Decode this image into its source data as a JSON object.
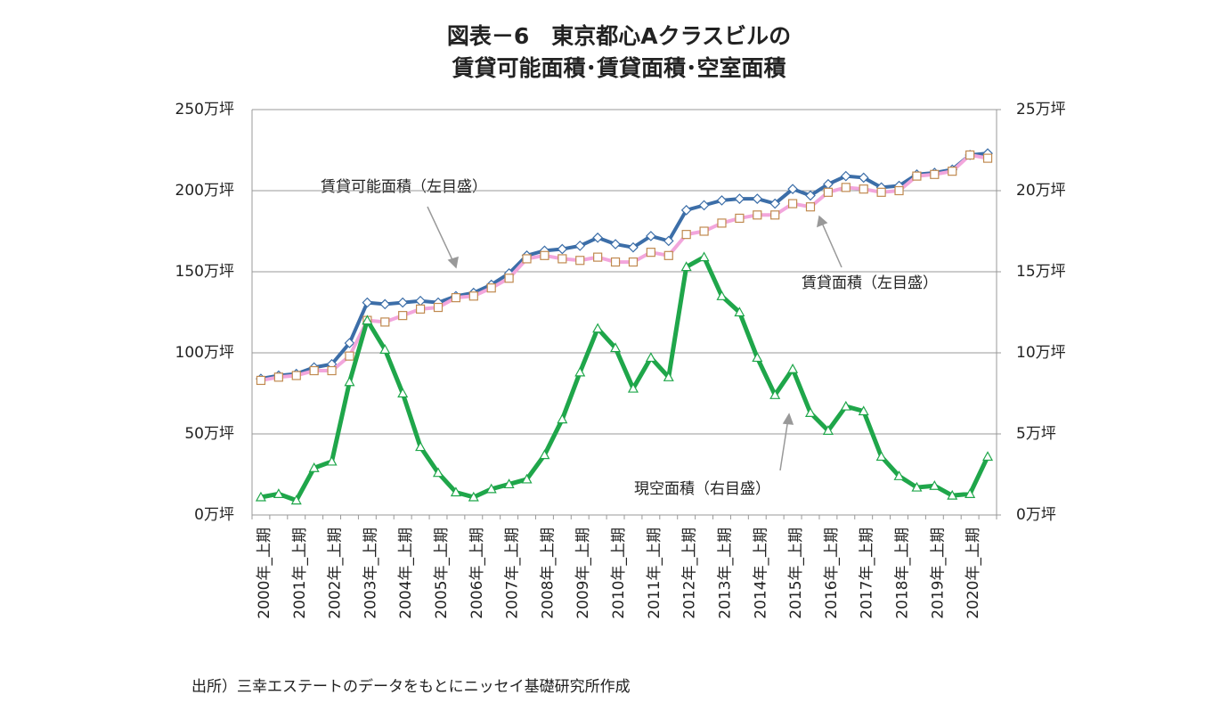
{
  "chart_data": {
    "type": "line",
    "title": [
      "図表－6　東京都心Aクラスビルの",
      "賃貸可能面積･賃貸面積･空室面積"
    ],
    "categories": [
      "2000年_上期",
      null,
      "2001年_上期",
      null,
      "2002年_上期",
      null,
      "2003年_上期",
      null,
      "2004年_上期",
      null,
      "2005年_上期",
      null,
      "2006年_上期",
      null,
      "2007年_上期",
      null,
      "2008年_上期",
      null,
      "2009年_上期",
      null,
      "2010年_上期",
      null,
      "2011年_上期",
      null,
      "2012年_上期",
      null,
      "2013年_上期",
      null,
      "2014年_上期",
      null,
      "2015年_上期",
      null,
      "2016年_上期",
      null,
      "2017年_上期",
      null,
      "2018年_上期",
      null,
      "2019年_上期",
      null,
      "2020年_上期",
      null
    ],
    "series": [
      {
        "name": "賃貸可能面積（左目盛）",
        "color": "#3c6ea8",
        "marker": "diamond",
        "label_color": "#8eaacb",
        "values": [
          84,
          86,
          87,
          91,
          93,
          106,
          131,
          130,
          131,
          132,
          131,
          135,
          137,
          142,
          149,
          160,
          163,
          164,
          166,
          171,
          167,
          165,
          172,
          169,
          188,
          191,
          194,
          195,
          195,
          192,
          201,
          197,
          204,
          209,
          208,
          202,
          203,
          210,
          211,
          213,
          222,
          223
        ]
      },
      {
        "name": "賃貸面積（左目盛）",
        "color": "#f2a6dc",
        "marker": "square",
        "marker_color": "#c08a50",
        "label_color": "#ee8e8e",
        "values": [
          83,
          85,
          86,
          89,
          89,
          98,
          120,
          119,
          123,
          127,
          128,
          134,
          135,
          140,
          146,
          158,
          160,
          158,
          157,
          159,
          156,
          156,
          162,
          160,
          173,
          175,
          180,
          183,
          185,
          185,
          192,
          190,
          199,
          202,
          201,
          199,
          200,
          209,
          210,
          212,
          222,
          220
        ]
      },
      {
        "name": "現空面積（右目盛）",
        "color": "#1fa64a",
        "marker": "triangle",
        "label_color": "#6cc27c",
        "axis": "y2",
        "values": [
          1.1,
          1.3,
          0.9,
          2.9,
          3.3,
          8.2,
          12.0,
          10.2,
          7.5,
          4.2,
          2.6,
          1.4,
          1.1,
          1.6,
          1.9,
          2.2,
          3.7,
          5.9,
          8.8,
          11.5,
          10.3,
          7.8,
          9.7,
          8.5,
          15.3,
          15.9,
          13.5,
          12.5,
          9.7,
          7.4,
          9.0,
          6.3,
          5.2,
          6.7,
          6.4,
          3.6,
          2.4,
          1.7,
          1.8,
          1.2,
          1.3,
          3.6
        ]
      }
    ],
    "ylim": [
      0,
      250
    ],
    "yticks": [
      {
        "value": 0,
        "label": "0万坪"
      },
      {
        "value": 50,
        "label": "50万坪"
      },
      {
        "value": 100,
        "label": "100万坪"
      },
      {
        "value": 150,
        "label": "150万坪"
      },
      {
        "value": 200,
        "label": "200万坪"
      },
      {
        "value": 250,
        "label": "250万坪"
      }
    ],
    "y2lim": [
      0,
      25
    ],
    "y2ticks": [
      {
        "value": 0,
        "label": "0万坪"
      },
      {
        "value": 5,
        "label": "5万坪"
      },
      {
        "value": 10,
        "label": "10万坪"
      },
      {
        "value": 15,
        "label": "15万坪"
      },
      {
        "value": 20,
        "label": "20万坪"
      },
      {
        "value": 25,
        "label": "25万坪"
      }
    ],
    "grid": true,
    "source": "出所）三幸エステートのデータをもとにニッセイ基礎研究所作成"
  }
}
